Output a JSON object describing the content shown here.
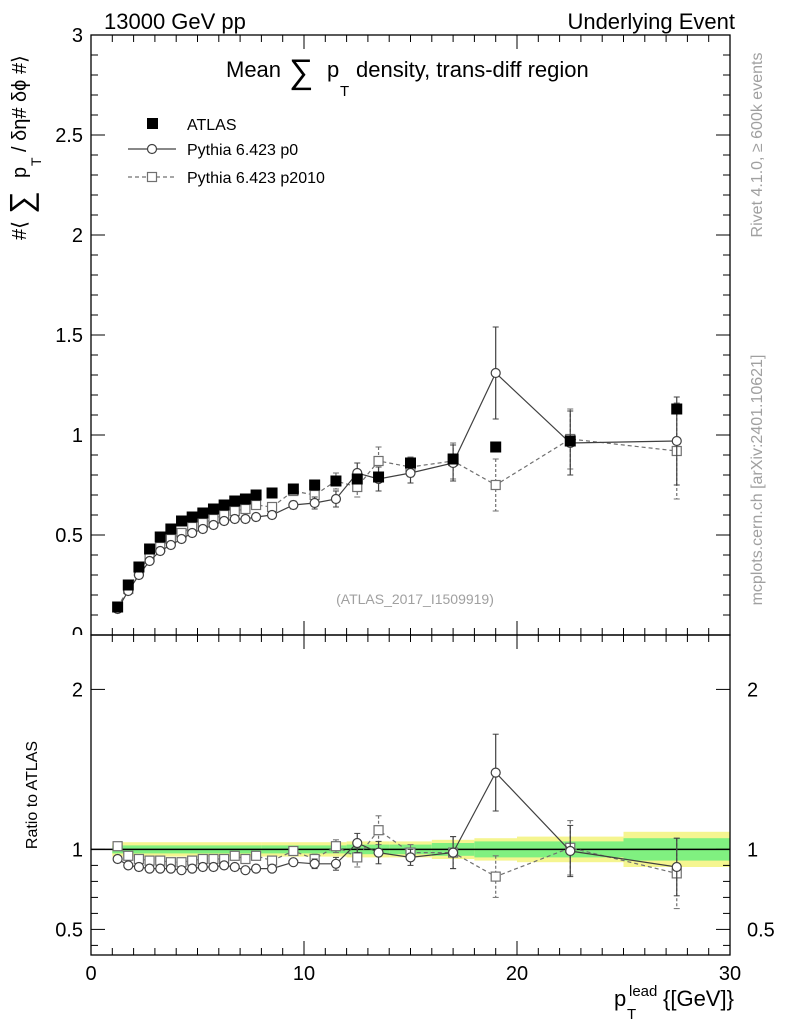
{
  "header": {
    "left": "13000 GeV pp",
    "right": "Underlying Event"
  },
  "side": {
    "rivet": "Rivet 4.1.0, ≥ 600k events",
    "mcplots": "mcplots.cern.ch [arXiv:2401.10621]"
  },
  "colors": {
    "data": "#000000",
    "p0": "#404040",
    "p2010": "#707070",
    "band_inner": "#80f080",
    "band_outer": "#f5f590",
    "watermark": "#a0a0a0"
  },
  "chart_data": [
    {
      "type": "scatter",
      "title": "Mean ∑ pₜ density, trans-diff region",
      "title_parts": {
        "pre": "Mean",
        "sum": "∑",
        "p": "p",
        "sub": "T",
        "post": "density, trans-diff region"
      },
      "ylabel": "#⟨ ∑ pₜ / δη# δϕ #⟩",
      "ylabel_parts": {
        "pre": "#⟨",
        "sum": "∑",
        "p": "p",
        "sub": "T",
        "post": "/ δη# δϕ #⟩"
      },
      "xlim": [
        0,
        30
      ],
      "ylim": [
        0,
        3
      ],
      "yticks": [
        "0.5",
        "1",
        "1.5",
        "2",
        "2.5",
        "3"
      ],
      "watermark": "(ATLAS_2017_I1509919)",
      "legend": [
        "ATLAS",
        "Pythia 6.423 p0",
        "Pythia 6.423 p2010"
      ],
      "series": [
        {
          "name": "ATLAS",
          "x": [
            1.25,
            1.75,
            2.25,
            2.75,
            3.25,
            3.75,
            4.25,
            4.75,
            5.25,
            5.75,
            6.25,
            6.75,
            7.25,
            7.75,
            8.5,
            9.5,
            10.5,
            11.5,
            12.5,
            13.5,
            15,
            17,
            19,
            22.5,
            27.5
          ],
          "y": [
            0.14,
            0.25,
            0.34,
            0.43,
            0.49,
            0.53,
            0.57,
            0.59,
            0.61,
            0.63,
            0.65,
            0.67,
            0.68,
            0.7,
            0.71,
            0.73,
            0.75,
            0.77,
            0.78,
            0.79,
            0.86,
            0.88,
            0.94,
            0.97,
            1.13
          ]
        },
        {
          "name": "Pythia 6.423 p0",
          "x": [
            1.25,
            1.75,
            2.25,
            2.75,
            3.25,
            3.75,
            4.25,
            4.75,
            5.25,
            5.75,
            6.25,
            6.75,
            7.25,
            7.75,
            8.5,
            9.5,
            10.5,
            11.5,
            12.5,
            13.5,
            15,
            17,
            19,
            22.5,
            27.5
          ],
          "y": [
            0.13,
            0.22,
            0.3,
            0.37,
            0.42,
            0.45,
            0.48,
            0.51,
            0.53,
            0.55,
            0.57,
            0.58,
            0.58,
            0.59,
            0.6,
            0.65,
            0.66,
            0.68,
            0.81,
            0.78,
            0.81,
            0.86,
            1.31,
            0.96,
            0.97
          ],
          "err": [
            0.01,
            0.01,
            0.01,
            0.01,
            0.01,
            0.01,
            0.01,
            0.01,
            0.01,
            0.01,
            0.01,
            0.01,
            0.01,
            0.01,
            0.01,
            0.02,
            0.03,
            0.04,
            0.05,
            0.06,
            0.05,
            0.09,
            0.23,
            0.16,
            0.22
          ]
        },
        {
          "name": "Pythia 6.423 p2010",
          "x": [
            1.25,
            1.75,
            2.25,
            2.75,
            3.25,
            3.75,
            4.25,
            4.75,
            5.25,
            5.75,
            6.25,
            6.75,
            7.25,
            7.75,
            8.5,
            9.5,
            10.5,
            11.5,
            12.5,
            13.5,
            15,
            17,
            19,
            22.5,
            27.5
          ],
          "y": [
            0.14,
            0.23,
            0.32,
            0.39,
            0.44,
            0.48,
            0.51,
            0.54,
            0.56,
            0.58,
            0.6,
            0.62,
            0.63,
            0.65,
            0.64,
            0.72,
            0.7,
            0.77,
            0.74,
            0.87,
            0.84,
            0.87,
            0.75,
            0.98,
            0.92
          ],
          "err": [
            0.01,
            0.01,
            0.01,
            0.01,
            0.01,
            0.01,
            0.01,
            0.01,
            0.01,
            0.01,
            0.01,
            0.01,
            0.01,
            0.01,
            0.01,
            0.02,
            0.03,
            0.04,
            0.05,
            0.07,
            0.05,
            0.09,
            0.13,
            0.15,
            0.24
          ]
        }
      ]
    },
    {
      "type": "scatter",
      "title": "",
      "ylabel": "Ratio to ATLAS",
      "xlabel": "pₜˡᵉᵃᵈ {[GeV]}",
      "xlabel_parts": {
        "p": "p",
        "sub": "T",
        "sup": "lead",
        "post": "{[GeV]}"
      },
      "xlim": [
        0,
        30
      ],
      "ylim": [
        0.34,
        2.34
      ],
      "xticks": [
        "0",
        "10",
        "20",
        "30"
      ],
      "yticks": [
        "0.5",
        "1",
        "2"
      ],
      "band": {
        "edges": [
          1,
          8,
          12,
          14,
          16,
          18,
          20,
          22.5,
          25,
          30
        ],
        "inner": [
          0.025,
          0.025,
          0.03,
          0.03,
          0.04,
          0.05,
          0.05,
          0.05,
          0.07,
          0.07
        ],
        "outer": [
          0.045,
          0.045,
          0.05,
          0.05,
          0.06,
          0.07,
          0.08,
          0.08,
          0.11,
          0.11
        ]
      },
      "series": [
        {
          "name": "Pythia 6.423 p0",
          "x": [
            1.25,
            1.75,
            2.25,
            2.75,
            3.25,
            3.75,
            4.25,
            4.75,
            5.25,
            5.75,
            6.25,
            6.75,
            7.25,
            7.75,
            8.5,
            9.5,
            10.5,
            11.5,
            12.5,
            13.5,
            15,
            17,
            19,
            22.5,
            27.5
          ],
          "y": [
            0.94,
            0.9,
            0.89,
            0.88,
            0.88,
            0.88,
            0.87,
            0.88,
            0.89,
            0.89,
            0.9,
            0.89,
            0.87,
            0.88,
            0.88,
            0.92,
            0.91,
            0.91,
            1.04,
            0.98,
            0.95,
            0.98,
            1.48,
            0.99,
            0.89
          ],
          "err": [
            0.01,
            0.01,
            0.01,
            0.01,
            0.01,
            0.01,
            0.01,
            0.01,
            0.01,
            0.01,
            0.01,
            0.01,
            0.01,
            0.01,
            0.01,
            0.02,
            0.03,
            0.04,
            0.06,
            0.07,
            0.05,
            0.1,
            0.24,
            0.16,
            0.18
          ]
        },
        {
          "name": "Pythia 6.423 p2010",
          "x": [
            1.25,
            1.75,
            2.25,
            2.75,
            3.25,
            3.75,
            4.25,
            4.75,
            5.25,
            5.75,
            6.25,
            6.75,
            7.25,
            7.75,
            8.5,
            9.5,
            10.5,
            11.5,
            12.5,
            13.5,
            15,
            17,
            19,
            22.5,
            27.5
          ],
          "y": [
            1.02,
            0.96,
            0.94,
            0.93,
            0.93,
            0.92,
            0.92,
            0.93,
            0.94,
            0.94,
            0.94,
            0.96,
            0.94,
            0.96,
            0.93,
            0.99,
            0.94,
            1.02,
            0.95,
            1.12,
            0.98,
            0.98,
            0.83,
            1.01,
            0.85
          ],
          "err": [
            0.01,
            0.01,
            0.01,
            0.01,
            0.01,
            0.01,
            0.01,
            0.01,
            0.01,
            0.01,
            0.01,
            0.01,
            0.01,
            0.01,
            0.01,
            0.02,
            0.03,
            0.04,
            0.06,
            0.09,
            0.05,
            0.1,
            0.13,
            0.17,
            0.22
          ]
        }
      ]
    }
  ]
}
